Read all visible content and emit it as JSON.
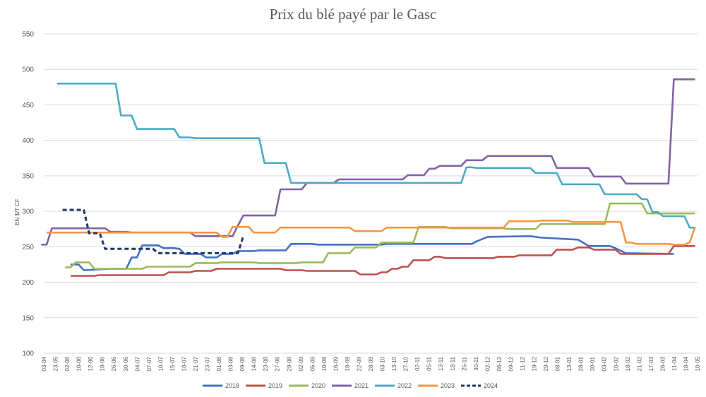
{
  "chart_data": {
    "type": "line",
    "title": "Prix du blé payé par le Gasc",
    "ylabel": "EN $/T CF",
    "xlabel": "",
    "ylim": [
      100,
      550
    ],
    "yticks": [
      100,
      150,
      200,
      250,
      300,
      350,
      400,
      450,
      500,
      550
    ],
    "grid": true,
    "legend": "bottom",
    "categories": [
      "03-04",
      "23-05",
      "02-06",
      "10-06",
      "12-06",
      "18-06",
      "26-06",
      "30-06",
      "04-07",
      "07-07",
      "10-07",
      "15-07",
      "18-07",
      "21-07",
      "23-07",
      "01-08",
      "03-08",
      "09-08",
      "14-08",
      "23-08",
      "27-08",
      "29-08",
      "02-09",
      "05-09",
      "10-09",
      "16-09",
      "18-09",
      "22-09",
      "28-09",
      "03-10",
      "13-10",
      "27-10",
      "02-11",
      "05-11",
      "13-11",
      "18-11",
      "25-11",
      "30-11",
      "02-12",
      "06-12",
      "09-12",
      "11-12",
      "19-12",
      "29-12",
      "08-01",
      "13-01",
      "28-01",
      "30-01",
      "03-02",
      "10-02",
      "18-02",
      "21-02",
      "17-03",
      "26-03",
      "11-04",
      "18-04",
      "10-05"
    ],
    "series": [
      {
        "name": "2018",
        "color": "#4472C4",
        "dashed": false,
        "points": [
          [
            4.5,
            225
          ],
          [
            6,
            225
          ],
          [
            7,
            217
          ],
          [
            12,
            219
          ],
          [
            15,
            219
          ],
          [
            16,
            235
          ],
          [
            17,
            235
          ],
          [
            18,
            252
          ],
          [
            21,
            252
          ],
          [
            22,
            248
          ],
          [
            24,
            248
          ],
          [
            25,
            247
          ],
          [
            26,
            240
          ],
          [
            29,
            240
          ],
          [
            30,
            235
          ],
          [
            32,
            235
          ],
          [
            33,
            240
          ],
          [
            35,
            240
          ],
          [
            36,
            244
          ],
          [
            39,
            244
          ],
          [
            40,
            245
          ],
          [
            45,
            245
          ],
          [
            46,
            254
          ],
          [
            50,
            254
          ],
          [
            51,
            253
          ],
          [
            63,
            253
          ],
          [
            64,
            254
          ],
          [
            80,
            254
          ],
          [
            81,
            258
          ],
          [
            83,
            264
          ],
          [
            91,
            265
          ],
          [
            93,
            263
          ],
          [
            100,
            260
          ],
          [
            102,
            251
          ],
          [
            106,
            251
          ],
          [
            107,
            248
          ],
          [
            109,
            241
          ],
          [
            118,
            240
          ]
        ]
      },
      {
        "name": "2019",
        "color": "#C0504D",
        "dashed": false,
        "points": [
          [
            4.5,
            209
          ],
          [
            9,
            209
          ],
          [
            10,
            210
          ],
          [
            22,
            210
          ],
          [
            23,
            214
          ],
          [
            27,
            214
          ],
          [
            28,
            216
          ],
          [
            31,
            216
          ],
          [
            32,
            219
          ],
          [
            44,
            219
          ],
          [
            45,
            217
          ],
          [
            48,
            217
          ],
          [
            49,
            216
          ],
          [
            58,
            216
          ],
          [
            59,
            211
          ],
          [
            62,
            211
          ],
          [
            63,
            214
          ],
          [
            64,
            214
          ],
          [
            65,
            219
          ],
          [
            66,
            219
          ],
          [
            67,
            222
          ],
          [
            68,
            222
          ],
          [
            69,
            231
          ],
          [
            72,
            231
          ],
          [
            73,
            236
          ],
          [
            74,
            236
          ],
          [
            75,
            234
          ],
          [
            84,
            234
          ],
          [
            85,
            236
          ],
          [
            88,
            236
          ],
          [
            89,
            238
          ],
          [
            95,
            238
          ],
          [
            96,
            246
          ],
          [
            99,
            246
          ],
          [
            100,
            249
          ],
          [
            102,
            249
          ],
          [
            103,
            246
          ],
          [
            107,
            246
          ],
          [
            108,
            240
          ],
          [
            117,
            240
          ],
          [
            118,
            251
          ],
          [
            122,
            251
          ]
        ]
      },
      {
        "name": "2020",
        "color": "#9BBB59",
        "dashed": false,
        "points": [
          [
            3.5,
            221
          ],
          [
            4.5,
            221
          ],
          [
            5.5,
            228
          ],
          [
            8,
            228
          ],
          [
            9,
            219
          ],
          [
            18,
            219
          ],
          [
            19,
            222
          ],
          [
            27,
            222
          ],
          [
            28,
            227
          ],
          [
            32,
            227
          ],
          [
            33,
            228
          ],
          [
            38,
            228
          ],
          [
            39,
            228
          ],
          [
            40,
            227
          ],
          [
            47,
            227
          ],
          [
            48,
            228
          ],
          [
            52,
            228
          ],
          [
            53,
            241
          ],
          [
            57,
            241
          ],
          [
            58,
            249
          ],
          [
            62,
            249
          ],
          [
            63,
            256
          ],
          [
            69,
            256
          ],
          [
            70,
            278
          ],
          [
            75,
            278
          ],
          [
            76,
            276
          ],
          [
            86,
            276
          ],
          [
            87,
            275
          ],
          [
            92,
            275
          ],
          [
            93,
            282
          ],
          [
            105,
            282
          ],
          [
            106,
            311
          ],
          [
            112,
            311
          ],
          [
            113,
            297
          ],
          [
            122,
            297
          ]
        ]
      },
      {
        "name": "2021",
        "color": "#8064A2",
        "dashed": false,
        "points": [
          [
            -1,
            253
          ],
          [
            0,
            253
          ],
          [
            1,
            276
          ],
          [
            11,
            276
          ],
          [
            12,
            271
          ],
          [
            15,
            271
          ],
          [
            16,
            270
          ],
          [
            27,
            270
          ],
          [
            28,
            265
          ],
          [
            35,
            265
          ],
          [
            36,
            280
          ],
          [
            37,
            294
          ],
          [
            43,
            294
          ],
          [
            44,
            331
          ],
          [
            48,
            331
          ],
          [
            49,
            340
          ],
          [
            54,
            340
          ],
          [
            55,
            345
          ],
          [
            67,
            345
          ],
          [
            68,
            351
          ],
          [
            71,
            351
          ],
          [
            72,
            360
          ],
          [
            73,
            360
          ],
          [
            74,
            364
          ],
          [
            78,
            364
          ],
          [
            79,
            372
          ],
          [
            82,
            372
          ],
          [
            83,
            378
          ],
          [
            95,
            378
          ],
          [
            96,
            361
          ],
          [
            102,
            361
          ],
          [
            103,
            349
          ],
          [
            108,
            349
          ],
          [
            109,
            339
          ],
          [
            117,
            339
          ],
          [
            118,
            486
          ],
          [
            122,
            486
          ]
        ]
      },
      {
        "name": "2022",
        "color": "#4BACC6",
        "dashed": false,
        "points": [
          [
            2,
            480
          ],
          [
            13,
            480
          ],
          [
            14,
            435
          ],
          [
            16,
            435
          ],
          [
            17,
            416
          ],
          [
            24,
            416
          ],
          [
            25,
            404
          ],
          [
            27,
            404
          ],
          [
            28,
            403
          ],
          [
            40,
            403
          ],
          [
            41,
            368
          ],
          [
            45,
            368
          ],
          [
            46,
            340
          ],
          [
            78,
            340
          ],
          [
            79,
            362
          ],
          [
            80,
            362
          ],
          [
            81,
            361
          ],
          [
            91,
            361
          ],
          [
            92,
            354
          ],
          [
            96,
            354
          ],
          [
            97,
            338
          ],
          [
            104,
            338
          ],
          [
            105,
            324
          ],
          [
            111,
            324
          ],
          [
            112,
            317
          ],
          [
            113,
            317
          ],
          [
            114,
            299
          ],
          [
            115,
            299
          ],
          [
            116,
            293
          ],
          [
            120,
            293
          ],
          [
            121,
            277
          ],
          [
            122,
            277
          ]
        ]
      },
      {
        "name": "2023",
        "color": "#F79646",
        "dashed": false,
        "points": [
          [
            0,
            270
          ],
          [
            32,
            270
          ],
          [
            33,
            264
          ],
          [
            34,
            264
          ],
          [
            35,
            278
          ],
          [
            38,
            278
          ],
          [
            39,
            270
          ],
          [
            43,
            270
          ],
          [
            44,
            277
          ],
          [
            57,
            277
          ],
          [
            58,
            272
          ],
          [
            63,
            272
          ],
          [
            64,
            277
          ],
          [
            86,
            277
          ],
          [
            87,
            286
          ],
          [
            92,
            286
          ],
          [
            93,
            287
          ],
          [
            98,
            287
          ],
          [
            99,
            285
          ],
          [
            108,
            285
          ],
          [
            109,
            256
          ],
          [
            110,
            256
          ],
          [
            111,
            254
          ],
          [
            117,
            254
          ],
          [
            118,
            253
          ],
          [
            120,
            253
          ],
          [
            121,
            256
          ],
          [
            122,
            278
          ]
        ]
      },
      {
        "name": "2024",
        "color": "#1F3864",
        "dashed": true,
        "points": [
          [
            3,
            302
          ],
          [
            7,
            302
          ],
          [
            8,
            269
          ],
          [
            10,
            269
          ],
          [
            11,
            247
          ],
          [
            20,
            247
          ],
          [
            21,
            241
          ],
          [
            29,
            241
          ],
          [
            30,
            241
          ],
          [
            31,
            241
          ],
          [
            36,
            241
          ],
          [
            37,
            265
          ]
        ]
      }
    ]
  }
}
